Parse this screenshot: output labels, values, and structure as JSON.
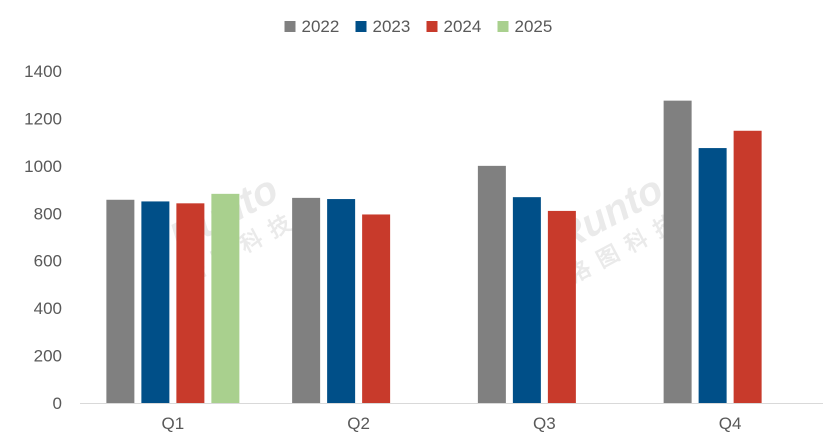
{
  "chart_data": {
    "type": "bar",
    "title": "",
    "xlabel": "",
    "ylabel": "",
    "categories": [
      "Q1",
      "Q2",
      "Q3",
      "Q4"
    ],
    "series": [
      {
        "name": "2022",
        "color": "#808080",
        "values": [
          857,
          865,
          1000,
          1275
        ]
      },
      {
        "name": "2023",
        "color": "#004f88",
        "values": [
          850,
          860,
          868,
          1075
        ]
      },
      {
        "name": "2024",
        "color": "#c83a2b",
        "values": [
          842,
          795,
          810,
          1148
        ]
      },
      {
        "name": "2025",
        "color": "#a9d08e",
        "values": [
          882,
          null,
          null,
          null
        ]
      }
    ],
    "ylim": [
      0,
      1400
    ],
    "yticks": [
      0,
      200,
      400,
      600,
      800,
      1000,
      1200,
      1400
    ],
    "grid": false,
    "legend_position": "top-center"
  },
  "watermark": {
    "brand": "Runto",
    "chinese": "洛图科技"
  }
}
